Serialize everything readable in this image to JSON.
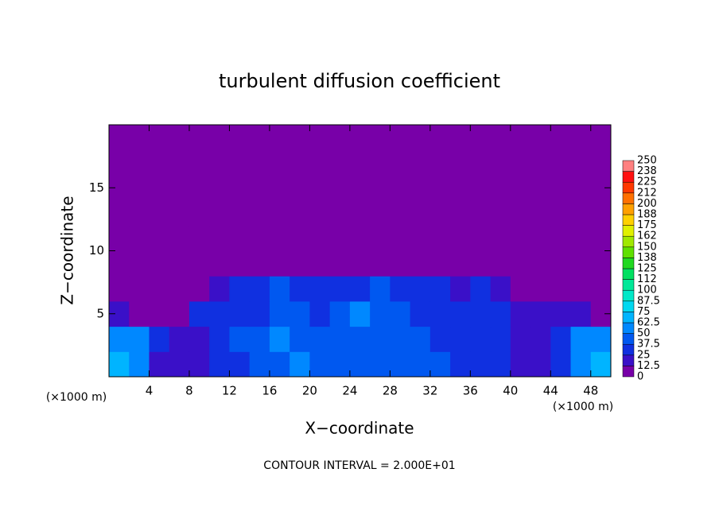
{
  "chart_data": {
    "type": "heatmap",
    "title": "turbulent diffusion coefficient",
    "x_label": "X−coordinate",
    "y_label": "Z−coordinate",
    "x_unit_labels": [
      "(×1000 m)",
      "(×1000 m)"
    ],
    "annotation": "CONTOUR INTERVAL = 2.000E+01",
    "xlim": [
      0,
      50
    ],
    "ylim": [
      0,
      20
    ],
    "xticks": [
      4,
      8,
      12,
      16,
      20,
      24,
      28,
      32,
      36,
      40,
      44,
      48
    ],
    "yticks": [
      5,
      10,
      15
    ],
    "x": [
      0,
      2,
      4,
      6,
      8,
      10,
      12,
      14,
      16,
      18,
      20,
      22,
      24,
      26,
      28,
      30,
      32,
      34,
      36,
      38,
      40,
      42,
      44,
      46,
      48,
      50
    ],
    "y": [
      0,
      2,
      4,
      6,
      8,
      10,
      12,
      14,
      16,
      18,
      20
    ],
    "z": [
      [
        65,
        60,
        20,
        15,
        15,
        30,
        35,
        40,
        45,
        50,
        45,
        45,
        40,
        45,
        45,
        40,
        40,
        35,
        35,
        30,
        20,
        15,
        30,
        55,
        65
      ],
      [
        60,
        55,
        25,
        15,
        20,
        35,
        40,
        40,
        50,
        45,
        40,
        40,
        45,
        40,
        45,
        40,
        35,
        35,
        30,
        25,
        15,
        20,
        35,
        50,
        55
      ],
      [
        15,
        10,
        10,
        5,
        25,
        35,
        35,
        35,
        45,
        40,
        35,
        40,
        55,
        40,
        40,
        35,
        35,
        30,
        30,
        25,
        20,
        20,
        20,
        15,
        10
      ],
      [
        0,
        0,
        0,
        0,
        5,
        20,
        25,
        30,
        40,
        30,
        25,
        30,
        35,
        45,
        35,
        30,
        30,
        20,
        25,
        20,
        10,
        5,
        5,
        0,
        0
      ],
      [
        0,
        0,
        0,
        0,
        0,
        0,
        0,
        0,
        0,
        10,
        0,
        0,
        0,
        0,
        10,
        0,
        0,
        0,
        0,
        0,
        0,
        0,
        0,
        0,
        0
      ],
      [
        0,
        0,
        0,
        0,
        0,
        0,
        0,
        0,
        0,
        0,
        0,
        0,
        0,
        0,
        0,
        0,
        0,
        0,
        0,
        0,
        0,
        0,
        0,
        0,
        0
      ],
      [
        0,
        0,
        0,
        0,
        0,
        0,
        0,
        0,
        0,
        0,
        0,
        0,
        0,
        0,
        0,
        0,
        0,
        0,
        0,
        0,
        0,
        0,
        0,
        0,
        0
      ],
      [
        0,
        0,
        0,
        0,
        0,
        0,
        0,
        0,
        0,
        0,
        0,
        0,
        0,
        0,
        0,
        0,
        0,
        0,
        0,
        0,
        0,
        0,
        0,
        0,
        0
      ],
      [
        0,
        0,
        0,
        0,
        0,
        0,
        0,
        0,
        0,
        0,
        0,
        0,
        0,
        0,
        0,
        0,
        0,
        0,
        0,
        0,
        0,
        0,
        0,
        0,
        0
      ],
      [
        0,
        0,
        0,
        0,
        0,
        0,
        0,
        0,
        0,
        0,
        0,
        0,
        0,
        0,
        0,
        0,
        0,
        0,
        0,
        0,
        0,
        0,
        0,
        0,
        0
      ]
    ],
    "levels": [
      0,
      12.5,
      25,
      37.5,
      50,
      62.5,
      75,
      87.5,
      100,
      {
        "value": 112.5,
        "label": "112"
      },
      125,
      {
        "value": 137.5,
        "label": "138"
      },
      150,
      {
        "value": 162.5,
        "label": "162"
      },
      175,
      {
        "value": 187.5,
        "label": "188"
      },
      200,
      {
        "value": 212.5,
        "label": "212"
      },
      225,
      {
        "value": 237.5,
        "label": "238"
      },
      250
    ],
    "colors": [
      "#7800a8",
      "#3a10c8",
      "#1030e0",
      "#0058f0",
      "#0088ff",
      "#00b4ff",
      "#00d8f0",
      "#00e8c8",
      "#00e898",
      "#00e060",
      "#20d820",
      "#60e000",
      "#a0e800",
      "#e0f000",
      "#ffd000",
      "#ffa000",
      "#ff7000",
      "#ff3800",
      "#ff1010",
      "#ff8080"
    ]
  }
}
